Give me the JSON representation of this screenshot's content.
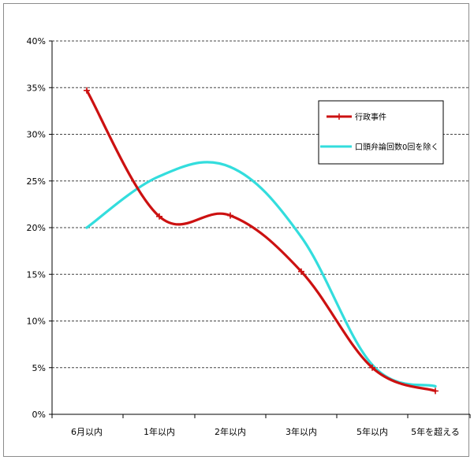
{
  "chart_data": {
    "type": "line",
    "categories": [
      "6月以内",
      "1年以内",
      "2年以内",
      "3年以内",
      "5年以内",
      "5年を超える"
    ],
    "y_ticks": [
      "0%",
      "5%",
      "10%",
      "15%",
      "20%",
      "25%",
      "30%",
      "35%",
      "40%"
    ],
    "ylim": [
      0,
      40
    ],
    "grid": "horizontal dashed",
    "legend_position": "top-right",
    "series": [
      {
        "name": "行政事件",
        "color": "#cc1111",
        "marker": "cross",
        "values": [
          34.7,
          21.2,
          21.3,
          15.3,
          5.0,
          2.5
        ]
      },
      {
        "name": "口頭弁論回数0回を除く",
        "color": "#33dddd",
        "marker": "none",
        "values": [
          20.0,
          25.5,
          26.5,
          19.0,
          5.3,
          3.0
        ]
      }
    ]
  }
}
